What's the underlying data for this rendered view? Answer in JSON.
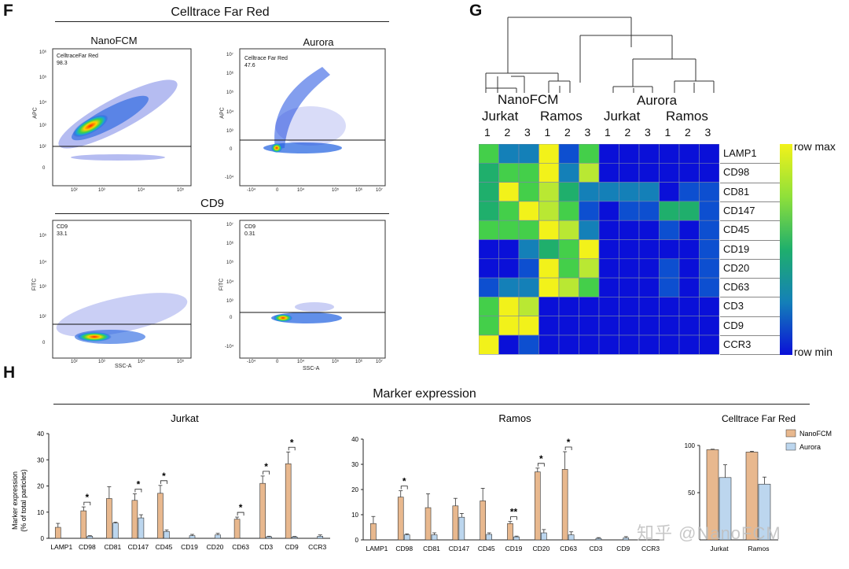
{
  "panels": {
    "F": "F",
    "G": "G",
    "H": "H"
  },
  "panel_f": {
    "section1_title": "Celltrace Far Red",
    "section2_title": "CD9",
    "nano_label": "NanoFCM",
    "aurora_label": "Aurora",
    "plots": [
      {
        "gate": "CelltraceFar Red",
        "pct": "98.3",
        "ylabel": "APC",
        "xlabel": ""
      },
      {
        "gate": "Celltrace Far Red",
        "pct": "47.6",
        "ylabel": "APC",
        "xlabel": ""
      },
      {
        "gate": "CD9",
        "pct": "33.1",
        "ylabel": "FITC",
        "xlabel": "SSC-A"
      },
      {
        "gate": "CD9",
        "pct": "0.31",
        "ylabel": "FITC",
        "xlabel": "SSC-A"
      }
    ],
    "ticks_nano_y": [
      "10⁶",
      "10⁵",
      "10⁴",
      "10³",
      "10²",
      "0"
    ],
    "ticks_nano_x": [
      "10²",
      "10³",
      "10⁴",
      "10⁵"
    ],
    "ticks_aur_y": [
      "10⁷",
      "10⁶",
      "10⁵",
      "10⁴",
      "10³",
      "0",
      "-10⁴"
    ],
    "ticks_aur_x": [
      "-10⁴",
      "0",
      "10⁴",
      "10⁵",
      "10⁶",
      "10⁷"
    ]
  },
  "heatmap": {
    "top_group_labels": [
      "NanoFCM",
      "Aurora"
    ],
    "cell_labels": [
      "Jurkat",
      "Ramos",
      "Jurkat",
      "Ramos"
    ],
    "replicates": [
      "1",
      "2",
      "3",
      "1",
      "2",
      "3",
      "1",
      "2",
      "3",
      "1",
      "2",
      "3"
    ],
    "rows": [
      "LAMP1",
      "CD98",
      "CD81",
      "CD147",
      "CD45",
      "CD19",
      "CD20",
      "CD63",
      "CD3",
      "CD9",
      "CCR3"
    ],
    "legend_max": "row max",
    "legend_min": "row min",
    "colors": {
      "c0": "#0a10d8",
      "c1": "#0d4fd0",
      "c2": "#1480b8",
      "c3": "#1faf6c",
      "c4": "#44cf4a",
      "c5": "#b9e833",
      "c6": "#f2f21a"
    },
    "values": [
      [
        4,
        2,
        2,
        6,
        1,
        4,
        0,
        0,
        0,
        0,
        0,
        0
      ],
      [
        3,
        4,
        4,
        6,
        2,
        5,
        0,
        0,
        0,
        0,
        0,
        0
      ],
      [
        3,
        6,
        4,
        5,
        3,
        2,
        2,
        2,
        2,
        0,
        1,
        1
      ],
      [
        3,
        4,
        6,
        5,
        4,
        1,
        0,
        1,
        1,
        3,
        3,
        1
      ],
      [
        4,
        4,
        4,
        6,
        5,
        2,
        0,
        0,
        0,
        1,
        0,
        1
      ],
      [
        0,
        0,
        2,
        3,
        4,
        6,
        0,
        0,
        0,
        0,
        0,
        1
      ],
      [
        0,
        0,
        1,
        6,
        4,
        5,
        0,
        0,
        0,
        1,
        0,
        1
      ],
      [
        1,
        2,
        2,
        6,
        5,
        4,
        0,
        0,
        0,
        1,
        0,
        1
      ],
      [
        4,
        6,
        5,
        0,
        0,
        0,
        0,
        0,
        0,
        0,
        0,
        0
      ],
      [
        4,
        6,
        6,
        0,
        0,
        0,
        0,
        0,
        0,
        0,
        0,
        0
      ],
      [
        6,
        0,
        1,
        0,
        0,
        0,
        0,
        0,
        0,
        0,
        0,
        0
      ]
    ]
  },
  "panel_h": {
    "section_title": "Marker expression",
    "ylabel": "Marker expression\n(% of total particles)",
    "legend": [
      "NanoFCM",
      "Aurora"
    ],
    "sig_jurkat": "*",
    "sig_ramos_double": "**"
  },
  "chart_data": [
    {
      "type": "bar",
      "title": "Jurkat",
      "xlabel": "",
      "ylabel": "Marker expression (% of total particles)",
      "ylim": [
        0,
        40
      ],
      "yticks": [
        "0",
        "10",
        "20",
        "30",
        "40"
      ],
      "categories": [
        "LAMP1",
        "CD98",
        "CD81",
        "CD147",
        "CD45",
        "CD19",
        "CD20",
        "CD63",
        "CD3",
        "CD9",
        "CCR3"
      ],
      "series": [
        {
          "name": "NanoFCM",
          "color": "#e8b88e",
          "values": [
            4.2,
            10.5,
            15.2,
            14.5,
            17.2,
            0,
            0,
            7.3,
            21.0,
            28.5,
            0
          ],
          "errors": [
            1.5,
            1.5,
            4.5,
            2.5,
            3.0,
            0,
            0,
            0.8,
            2.8,
            4.5,
            0
          ]
        },
        {
          "name": "Aurora",
          "color": "#bcd6ee",
          "values": [
            0,
            0.8,
            5.8,
            7.8,
            2.6,
            1.0,
            1.3,
            0,
            0.6,
            0.5,
            0.8
          ],
          "errors": [
            0,
            0.2,
            0.4,
            1.2,
            0.6,
            0.5,
            0.6,
            0,
            0.2,
            0.2,
            0.5
          ]
        }
      ],
      "significance": [
        {
          "category": "CD98",
          "label": "*"
        },
        {
          "category": "CD147",
          "label": "*"
        },
        {
          "category": "CD45",
          "label": "*"
        },
        {
          "category": "CD63",
          "label": "*"
        },
        {
          "category": "CD3",
          "label": "*"
        },
        {
          "category": "CD9",
          "label": "*"
        }
      ]
    },
    {
      "type": "bar",
      "title": "Ramos",
      "xlabel": "",
      "ylabel": "",
      "ylim": [
        0,
        40
      ],
      "yticks": [
        "0",
        "10",
        "20",
        "30",
        "40"
      ],
      "categories": [
        "LAMP1",
        "CD98",
        "CD81",
        "CD147",
        "CD45",
        "CD19",
        "CD20",
        "CD63",
        "CD3",
        "CD9",
        "CCR3"
      ],
      "series": [
        {
          "name": "NanoFCM",
          "color": "#e8b88e",
          "values": [
            6.5,
            17.0,
            12.8,
            13.5,
            15.5,
            6.5,
            27.0,
            28.0,
            0,
            0,
            0
          ],
          "errors": [
            2.8,
            2.5,
            5.5,
            3.0,
            5.0,
            0.8,
            1.5,
            7.0,
            0,
            0,
            0
          ],
          "approx_note": ""
        },
        {
          "name": "Aurora",
          "color": "#bcd6ee",
          "values": [
            0,
            2.0,
            2.0,
            9.0,
            2.2,
            1.2,
            2.8,
            2.0,
            0.6,
            0.8,
            0
          ],
          "errors": [
            0,
            0.4,
            0.8,
            1.5,
            0.6,
            0.3,
            1.3,
            1.2,
            0.3,
            0.5,
            0
          ]
        }
      ],
      "significance": [
        {
          "category": "CD98",
          "label": "*"
        },
        {
          "category": "CD19",
          "label": "**"
        },
        {
          "category": "CD20",
          "label": "*"
        },
        {
          "category": "CD63",
          "label": "*"
        }
      ]
    },
    {
      "type": "bar",
      "title": "Celltrace Far Red",
      "xlabel": "",
      "ylabel": "",
      "ylim": [
        0,
        100
      ],
      "yticks": [
        "50",
        "100"
      ],
      "categories": [
        "Jurkat",
        "Ramos"
      ],
      "series": [
        {
          "name": "NanoFCM",
          "color": "#e8b88e",
          "values": [
            95.5,
            93.0
          ],
          "errors": [
            0.5,
            0.8
          ]
        },
        {
          "name": "Aurora",
          "color": "#bcd6ee",
          "values": [
            66.0,
            59.0
          ],
          "errors": [
            13.5,
            7.5
          ]
        }
      ]
    }
  ],
  "watermark": "知乎 @NanoFCM"
}
